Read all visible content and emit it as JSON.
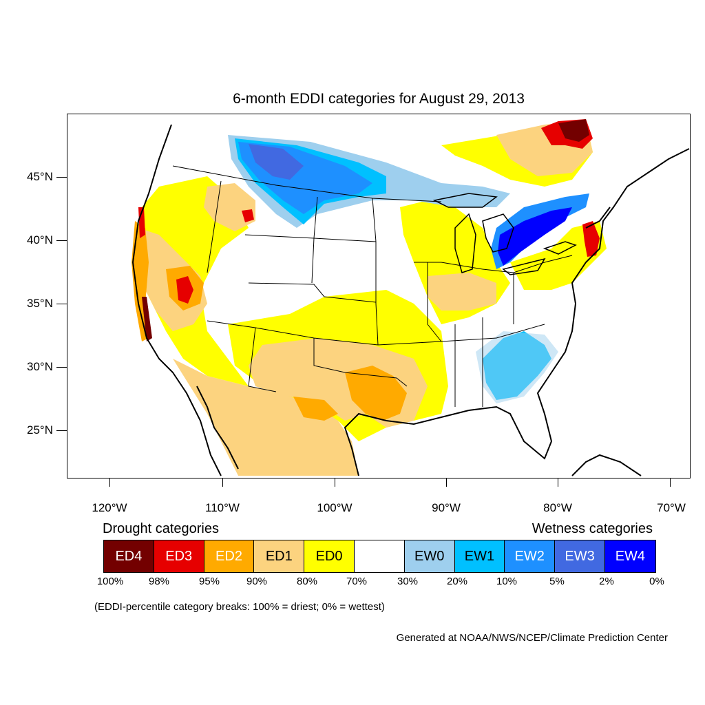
{
  "title": "6-month EDDI categories for August 29, 2013",
  "latitude_labels": [
    "45°N",
    "40°N",
    "35°N",
    "30°N",
    "25°N"
  ],
  "longitude_labels": [
    "120°W",
    "110°W",
    "100°W",
    "90°W",
    "80°W",
    "70°W"
  ],
  "legend": {
    "drought_heading": "Drought categories",
    "wetness_heading": "Wetness categories",
    "categories": [
      {
        "label": "ED4",
        "color": "#730000",
        "text_color": "#ffffff"
      },
      {
        "label": "ED3",
        "color": "#e60000",
        "text_color": "#ffffff"
      },
      {
        "label": "ED2",
        "color": "#ffaa00",
        "text_color": "#ffffff"
      },
      {
        "label": "ED1",
        "color": "#fcd37f",
        "text_color": "#000000"
      },
      {
        "label": "ED0",
        "color": "#ffff00",
        "text_color": "#000000"
      },
      {
        "label": "",
        "color": "#ffffff",
        "text_color": "#000000"
      },
      {
        "label": "EW0",
        "color": "#9ecfee",
        "text_color": "#000000"
      },
      {
        "label": "EW1",
        "color": "#00c0ff",
        "text_color": "#000000"
      },
      {
        "label": "EW2",
        "color": "#1e90ff",
        "text_color": "#ffffff"
      },
      {
        "label": "EW3",
        "color": "#4169e1",
        "text_color": "#ffffff"
      },
      {
        "label": "EW4",
        "color": "#0000ff",
        "text_color": "#ffffff"
      }
    ],
    "breaks": [
      "100%",
      "98%",
      "95%",
      "90%",
      "80%",
      "70%",
      "30%",
      "20%",
      "10%",
      "5%",
      "2%",
      "0%"
    ],
    "note": "(EDDI-percentile category breaks: 100% = driest; 0% = wettest)"
  },
  "credit": "Generated at NOAA/NWS/NCEP/Climate Prediction Center"
}
